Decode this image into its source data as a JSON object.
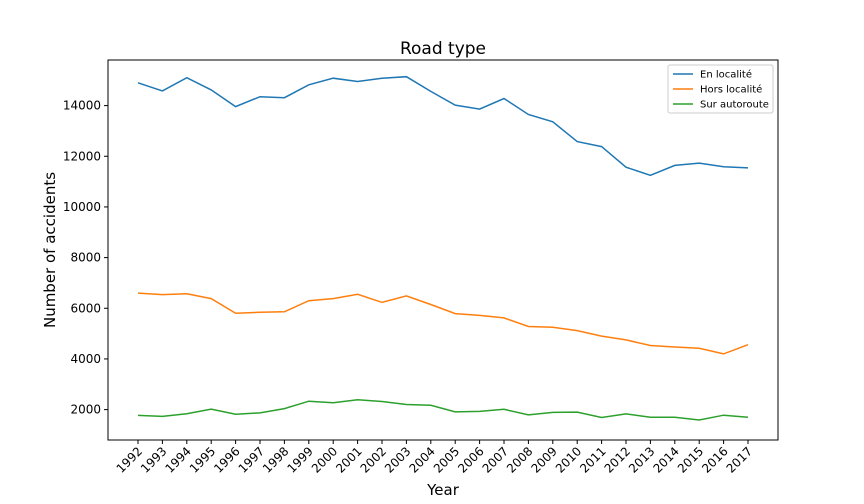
{
  "chart_data": {
    "type": "line",
    "title": "Road type",
    "xlabel": "Year",
    "ylabel": "Number of accidents",
    "x": [
      "1992",
      "1993",
      "1994",
      "1995",
      "1996",
      "1997",
      "1998",
      "1999",
      "2000",
      "2001",
      "2002",
      "2003",
      "2004",
      "2005",
      "2006",
      "2007",
      "2008",
      "2009",
      "2010",
      "2011",
      "2012",
      "2013",
      "2014",
      "2015",
      "2016",
      "2017"
    ],
    "ylim": [
      800,
      15800
    ],
    "yticks": [
      2000,
      4000,
      6000,
      8000,
      10000,
      12000,
      14000
    ],
    "grid": false,
    "legend_position": "top-right",
    "series": [
      {
        "name": "En localité",
        "color": "#1f77b4",
        "values": [
          14900,
          14580,
          15100,
          14620,
          13960,
          14350,
          14310,
          14820,
          15080,
          14950,
          15080,
          15140,
          14560,
          14020,
          13860,
          14280,
          13650,
          13360,
          12580,
          12380,
          11570,
          11250,
          11640,
          11730,
          11590,
          11540
        ]
      },
      {
        "name": "Hors localité",
        "color": "#ff7f0e",
        "values": [
          6600,
          6540,
          6570,
          6380,
          5800,
          5840,
          5860,
          6300,
          6380,
          6550,
          6230,
          6490,
          6150,
          5790,
          5720,
          5620,
          5280,
          5250,
          5120,
          4900,
          4750,
          4530,
          4470,
          4420,
          4200,
          4560
        ]
      },
      {
        "name": "Sur autoroute",
        "color": "#2ca02c",
        "values": [
          1770,
          1730,
          1840,
          2020,
          1820,
          1870,
          2040,
          2330,
          2270,
          2390,
          2320,
          2200,
          2170,
          1910,
          1930,
          2010,
          1790,
          1890,
          1900,
          1690,
          1830,
          1700,
          1700,
          1590,
          1780,
          1700
        ]
      }
    ]
  }
}
